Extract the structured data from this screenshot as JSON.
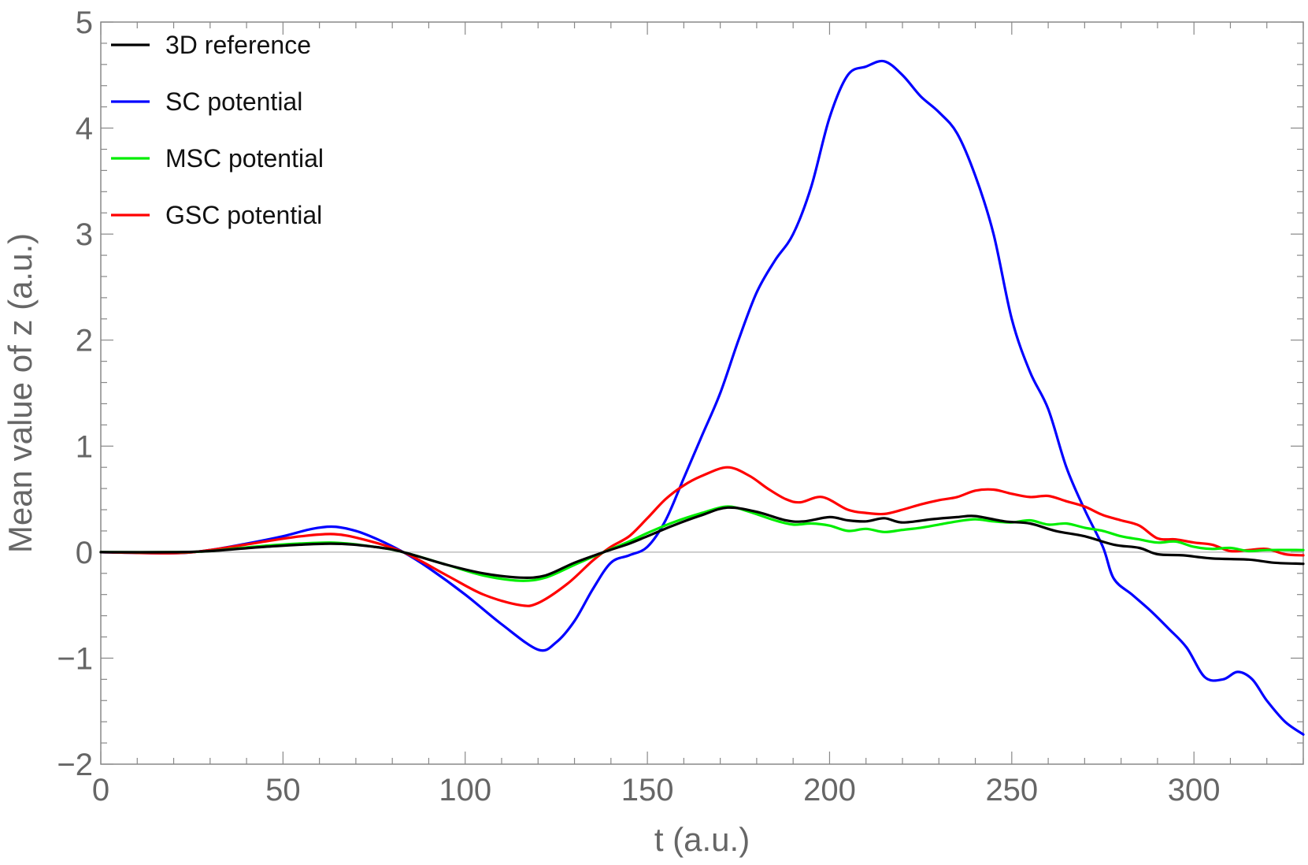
{
  "chart_data": {
    "type": "line",
    "title": "",
    "xlabel": "t (a.u.)",
    "ylabel": "Mean value of z (a.u.)",
    "xlim": [
      0,
      330
    ],
    "ylim": [
      -2,
      5
    ],
    "x_ticks": [
      0,
      50,
      100,
      150,
      200,
      250,
      300
    ],
    "x_tick_labels": [
      "0",
      "50",
      "100",
      "150",
      "200",
      "250",
      "300"
    ],
    "y_ticks": [
      -2,
      -1,
      0,
      1,
      2,
      3,
      4,
      5
    ],
    "y_tick_labels": [
      "−2",
      "−1",
      "0",
      "1",
      "2",
      "3",
      "4",
      "5"
    ],
    "legend_position": "top-left",
    "grid": false,
    "zero_line": true,
    "series": [
      {
        "name": "3D reference",
        "color": "#000000",
        "points": [
          [
            0,
            0
          ],
          [
            20,
            0
          ],
          [
            30,
            0.01
          ],
          [
            45,
            0.05
          ],
          [
            63,
            0.08
          ],
          [
            75,
            0.05
          ],
          [
            83,
            0
          ],
          [
            95,
            -0.12
          ],
          [
            105,
            -0.2
          ],
          [
            115,
            -0.24
          ],
          [
            122,
            -0.22
          ],
          [
            130,
            -0.1
          ],
          [
            138,
            0
          ],
          [
            145,
            0.08
          ],
          [
            150,
            0.15
          ],
          [
            157,
            0.25
          ],
          [
            165,
            0.35
          ],
          [
            172,
            0.42
          ],
          [
            180,
            0.38
          ],
          [
            188,
            0.3
          ],
          [
            193,
            0.29
          ],
          [
            200,
            0.33
          ],
          [
            205,
            0.3
          ],
          [
            210,
            0.29
          ],
          [
            215,
            0.32
          ],
          [
            220,
            0.28
          ],
          [
            228,
            0.31
          ],
          [
            235,
            0.33
          ],
          [
            240,
            0.34
          ],
          [
            248,
            0.29
          ],
          [
            255,
            0.27
          ],
          [
            262,
            0.2
          ],
          [
            270,
            0.15
          ],
          [
            278,
            0.07
          ],
          [
            285,
            0.04
          ],
          [
            290,
            -0.02
          ],
          [
            297,
            -0.03
          ],
          [
            305,
            -0.06
          ],
          [
            315,
            -0.07
          ],
          [
            322,
            -0.1
          ],
          [
            330,
            -0.11
          ]
        ]
      },
      {
        "name": "SC potential",
        "color": "#0000ff",
        "points": [
          [
            0,
            0
          ],
          [
            20,
            -0.01
          ],
          [
            30,
            0.02
          ],
          [
            40,
            0.08
          ],
          [
            50,
            0.15
          ],
          [
            58,
            0.22
          ],
          [
            64,
            0.24
          ],
          [
            70,
            0.2
          ],
          [
            76,
            0.12
          ],
          [
            83,
            0
          ],
          [
            90,
            -0.15
          ],
          [
            100,
            -0.4
          ],
          [
            110,
            -0.68
          ],
          [
            120,
            -0.92
          ],
          [
            125,
            -0.85
          ],
          [
            130,
            -0.65
          ],
          [
            135,
            -0.35
          ],
          [
            140,
            -0.1
          ],
          [
            145,
            -0.03
          ],
          [
            150,
            0.05
          ],
          [
            155,
            0.3
          ],
          [
            160,
            0.7
          ],
          [
            165,
            1.1
          ],
          [
            170,
            1.5
          ],
          [
            175,
            2.0
          ],
          [
            180,
            2.45
          ],
          [
            185,
            2.75
          ],
          [
            190,
            3.0
          ],
          [
            195,
            3.45
          ],
          [
            200,
            4.1
          ],
          [
            205,
            4.5
          ],
          [
            210,
            4.58
          ],
          [
            215,
            4.63
          ],
          [
            220,
            4.5
          ],
          [
            225,
            4.3
          ],
          [
            230,
            4.15
          ],
          [
            235,
            3.95
          ],
          [
            240,
            3.55
          ],
          [
            245,
            3.0
          ],
          [
            250,
            2.2
          ],
          [
            255,
            1.7
          ],
          [
            260,
            1.35
          ],
          [
            265,
            0.8
          ],
          [
            270,
            0.4
          ],
          [
            275,
            0.05
          ],
          [
            278,
            -0.25
          ],
          [
            283,
            -0.4
          ],
          [
            288,
            -0.55
          ],
          [
            293,
            -0.72
          ],
          [
            298,
            -0.9
          ],
          [
            303,
            -1.18
          ],
          [
            308,
            -1.2
          ],
          [
            312,
            -1.13
          ],
          [
            316,
            -1.2
          ],
          [
            320,
            -1.4
          ],
          [
            325,
            -1.6
          ],
          [
            330,
            -1.72
          ]
        ]
      },
      {
        "name": "MSC potential",
        "color": "#00ee00",
        "points": [
          [
            0,
            0
          ],
          [
            20,
            0
          ],
          [
            30,
            0.01
          ],
          [
            45,
            0.06
          ],
          [
            63,
            0.09
          ],
          [
            75,
            0.05
          ],
          [
            83,
            0
          ],
          [
            95,
            -0.12
          ],
          [
            105,
            -0.22
          ],
          [
            115,
            -0.27
          ],
          [
            122,
            -0.24
          ],
          [
            130,
            -0.12
          ],
          [
            138,
            0
          ],
          [
            145,
            0.1
          ],
          [
            150,
            0.18
          ],
          [
            157,
            0.28
          ],
          [
            165,
            0.37
          ],
          [
            172,
            0.43
          ],
          [
            178,
            0.38
          ],
          [
            185,
            0.3
          ],
          [
            190,
            0.26
          ],
          [
            195,
            0.27
          ],
          [
            200,
            0.25
          ],
          [
            205,
            0.2
          ],
          [
            210,
            0.22
          ],
          [
            215,
            0.19
          ],
          [
            220,
            0.21
          ],
          [
            225,
            0.23
          ],
          [
            230,
            0.26
          ],
          [
            235,
            0.29
          ],
          [
            240,
            0.31
          ],
          [
            245,
            0.29
          ],
          [
            250,
            0.28
          ],
          [
            255,
            0.3
          ],
          [
            260,
            0.26
          ],
          [
            265,
            0.27
          ],
          [
            270,
            0.23
          ],
          [
            275,
            0.2
          ],
          [
            280,
            0.15
          ],
          [
            285,
            0.12
          ],
          [
            290,
            0.09
          ],
          [
            295,
            0.1
          ],
          [
            300,
            0.05
          ],
          [
            305,
            0.03
          ],
          [
            310,
            0.04
          ],
          [
            315,
            0.01
          ],
          [
            320,
            0.02
          ],
          [
            330,
            0.02
          ]
        ]
      },
      {
        "name": "GSC potential",
        "color": "#ff0000",
        "points": [
          [
            0,
            0
          ],
          [
            20,
            -0.01
          ],
          [
            30,
            0.02
          ],
          [
            45,
            0.1
          ],
          [
            55,
            0.15
          ],
          [
            64,
            0.17
          ],
          [
            72,
            0.12
          ],
          [
            83,
            0
          ],
          [
            95,
            -0.22
          ],
          [
            105,
            -0.4
          ],
          [
            115,
            -0.5
          ],
          [
            120,
            -0.48
          ],
          [
            128,
            -0.3
          ],
          [
            135,
            -0.08
          ],
          [
            140,
            0.05
          ],
          [
            145,
            0.15
          ],
          [
            150,
            0.32
          ],
          [
            155,
            0.5
          ],
          [
            160,
            0.63
          ],
          [
            165,
            0.72
          ],
          [
            172,
            0.8
          ],
          [
            178,
            0.72
          ],
          [
            183,
            0.6
          ],
          [
            188,
            0.5
          ],
          [
            192,
            0.47
          ],
          [
            198,
            0.52
          ],
          [
            205,
            0.4
          ],
          [
            210,
            0.37
          ],
          [
            215,
            0.36
          ],
          [
            220,
            0.4
          ],
          [
            225,
            0.45
          ],
          [
            230,
            0.49
          ],
          [
            235,
            0.52
          ],
          [
            240,
            0.58
          ],
          [
            245,
            0.59
          ],
          [
            250,
            0.55
          ],
          [
            255,
            0.52
          ],
          [
            260,
            0.53
          ],
          [
            265,
            0.48
          ],
          [
            270,
            0.43
          ],
          [
            275,
            0.35
          ],
          [
            280,
            0.3
          ],
          [
            285,
            0.25
          ],
          [
            290,
            0.13
          ],
          [
            295,
            0.12
          ],
          [
            300,
            0.09
          ],
          [
            305,
            0.07
          ],
          [
            310,
            0.01
          ],
          [
            315,
            0.02
          ],
          [
            320,
            0.03
          ],
          [
            325,
            -0.02
          ],
          [
            330,
            -0.03
          ]
        ]
      }
    ]
  }
}
